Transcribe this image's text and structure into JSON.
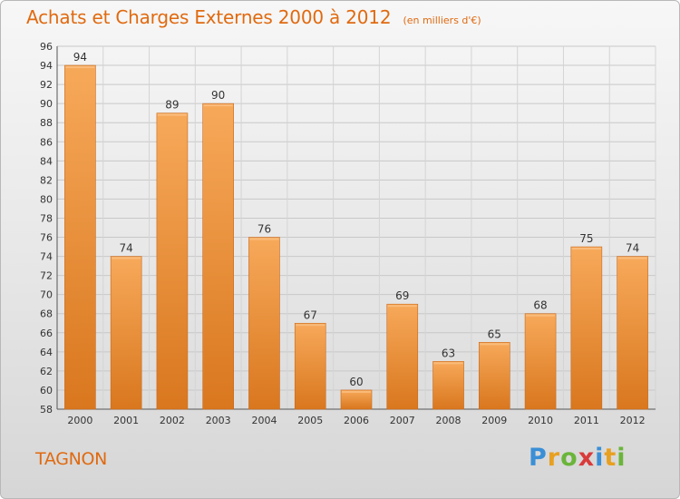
{
  "header": {
    "title": "Achats et Charges Externes 2000 à 2012",
    "subtitle": "(en milliers d'€)"
  },
  "commune": "TAGNON",
  "logo": {
    "text": "Proxiti",
    "letters": [
      "P",
      "r",
      "o",
      "x",
      "i",
      "t",
      "i"
    ]
  },
  "colors": {
    "bar_light": "#f7a95a",
    "bar_dark": "#d9771e",
    "accent": "#e06a10"
  },
  "chart_data": {
    "type": "bar",
    "categories": [
      "2000",
      "2001",
      "2002",
      "2003",
      "2004",
      "2005",
      "2006",
      "2007",
      "2008",
      "2009",
      "2010",
      "2011",
      "2012"
    ],
    "values": [
      94,
      74,
      89,
      90,
      76,
      67,
      60,
      69,
      63,
      65,
      68,
      75,
      74
    ],
    "title": "Achats et Charges Externes 2000 à 2012",
    "subtitle": "(en milliers d'€)",
    "ylim": [
      58,
      96
    ],
    "yticks": [
      58,
      60,
      62,
      64,
      66,
      68,
      70,
      72,
      74,
      76,
      78,
      80,
      82,
      84,
      86,
      88,
      90,
      92,
      94,
      96
    ],
    "grid": true,
    "data_labels": true
  }
}
